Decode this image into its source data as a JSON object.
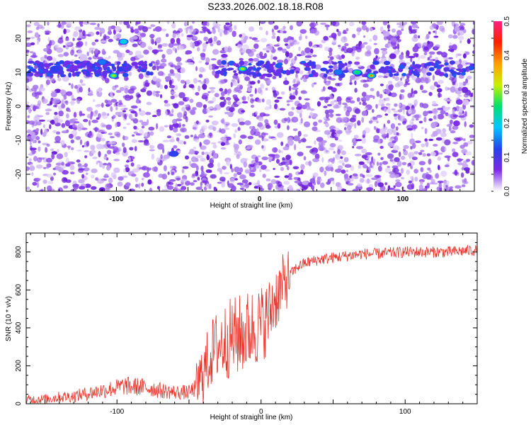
{
  "title": "S233.2026.002.18.18.R08",
  "colors": {
    "line": "#e8332a",
    "frame": "#000000",
    "background": "#ffffff"
  },
  "chart_data": [
    {
      "type": "heatmap",
      "xlabel": "Height of straight line (km)",
      "ylabel": "Frequency (Hz)",
      "xlim": [
        -163,
        150
      ],
      "ylim": [
        -25,
        25
      ],
      "xticks": [
        -100,
        0,
        100
      ],
      "yticks": [
        -20,
        -10,
        0,
        10,
        20
      ],
      "colorbar": {
        "label": "Normalized spectral amplitude",
        "range": [
          0.0,
          0.5
        ],
        "ticks": [
          0.0,
          0.1,
          0.2,
          0.3,
          0.4,
          0.5
        ],
        "colormap": [
          "#ffffff",
          "#7b2be8",
          "#2840f0",
          "#00c8ff",
          "#00e070",
          "#c8f000",
          "#ffa000",
          "#ff2000",
          "#ff2080"
        ]
      },
      "features": [
        {
          "type": "band",
          "x_range": [
            -163,
            -75
          ],
          "frequency": 11,
          "amplitude": 0.1
        },
        {
          "type": "band",
          "x_range": [
            -30,
            150
          ],
          "frequency": 11,
          "amplitude": 0.1
        },
        {
          "type": "peak",
          "x": -102,
          "y": 9,
          "amplitude": 0.3
        },
        {
          "type": "peak",
          "x": -95,
          "y": 19,
          "amplitude": 0.2
        },
        {
          "type": "peak",
          "x": -110,
          "y": 13,
          "amplitude": 0.15
        },
        {
          "type": "peak",
          "x": -12,
          "y": 11,
          "amplitude": 0.3
        },
        {
          "type": "peak",
          "x": 68,
          "y": 10,
          "amplitude": 0.25
        },
        {
          "type": "peak",
          "x": 78,
          "y": 9,
          "amplitude": 0.42
        },
        {
          "type": "peak",
          "x": 55,
          "y": 10,
          "amplitude": 0.15
        },
        {
          "type": "peak",
          "x": -143,
          "y": 11,
          "amplitude": 0.12
        },
        {
          "type": "peak",
          "x": -60,
          "y": -14,
          "amplitude": 0.12
        }
      ]
    },
    {
      "type": "line",
      "xlabel": "Height of straight line (km)",
      "ylabel": "SNR (10 * v/v)",
      "xlim": [
        -163,
        150
      ],
      "ylim": [
        0,
        900
      ],
      "xticks": [
        -100,
        0,
        100
      ],
      "yticks": [
        0,
        200,
        400,
        600,
        800
      ],
      "series": [
        {
          "x": [
            -163,
            -150,
            -140,
            -130,
            -120,
            -110,
            -100,
            -95,
            -90,
            -85,
            -80,
            -75,
            -70,
            -60,
            -50,
            -45,
            -40,
            -35,
            -30,
            -25,
            -20,
            -15,
            -10,
            -5,
            0,
            5,
            10,
            15,
            20,
            25,
            30,
            40,
            50,
            60,
            70,
            80,
            90,
            100,
            110,
            120,
            130,
            140,
            150
          ],
          "y": [
            20,
            25,
            35,
            40,
            55,
            70,
            85,
            95,
            90,
            90,
            85,
            80,
            70,
            60,
            60,
            85,
            160,
            260,
            310,
            330,
            350,
            360,
            380,
            400,
            420,
            460,
            560,
            620,
            680,
            720,
            740,
            760,
            770,
            780,
            790,
            790,
            795,
            800,
            800,
            800,
            800,
            805,
            810
          ]
        }
      ]
    }
  ]
}
